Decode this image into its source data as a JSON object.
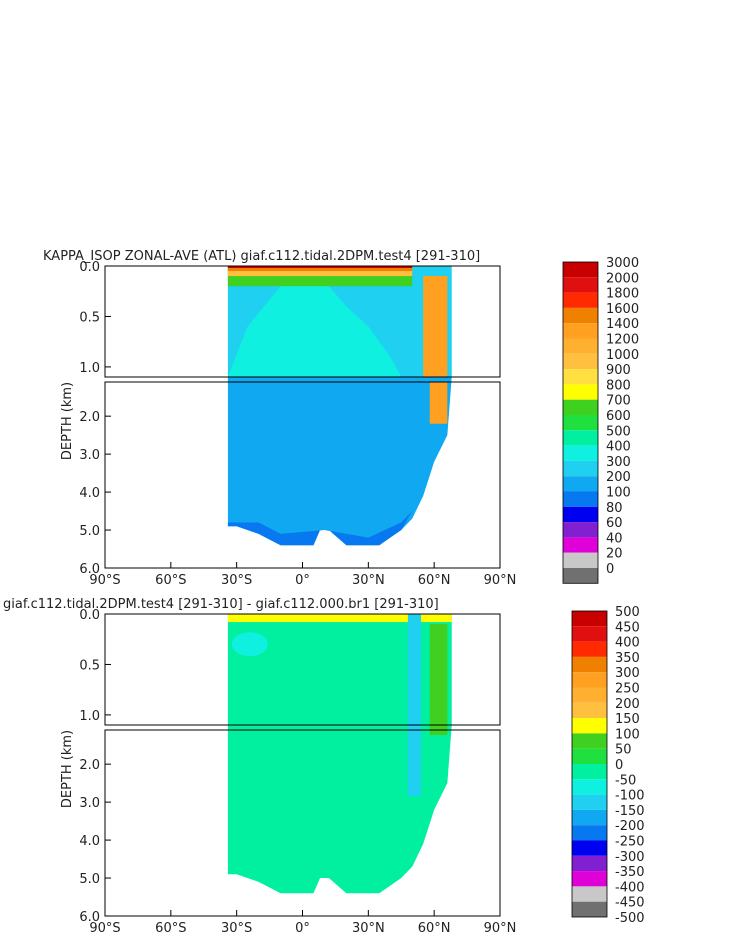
{
  "chart_data": [
    {
      "type": "heatmap",
      "title": "KAPPA_ISOP ZONAL-AVE (ATL) giaf.c112.tidal.2DPM.test4 [291-310]",
      "ylabel": "DEPTH (km)",
      "x_ticks": [
        "90°S",
        "60°S",
        "30°S",
        "0°",
        "30°N",
        "60°N",
        "90°N"
      ],
      "y_ticks_upper": [
        "0.0",
        "0.5",
        "1.0"
      ],
      "y_ticks_lower": [
        "2.0",
        "3.0",
        "4.0",
        "5.0",
        "6.0"
      ],
      "xlim": [
        -90,
        90
      ],
      "ylim_upper": [
        0,
        1.1
      ],
      "ylim_lower": [
        1.1,
        6.0
      ],
      "colorbar_labels": [
        "3000",
        "2000",
        "1800",
        "1600",
        "1400",
        "1200",
        "1000",
        "900",
        "800",
        "700",
        "600",
        "500",
        "400",
        "300",
        "200",
        "100",
        "80",
        "60",
        "40",
        "20",
        "0"
      ],
      "colorbar_colors": [
        "#c80000",
        "#e01010",
        "#ff2a00",
        "#f08000",
        "#ffa020",
        "#ffb030",
        "#ffc040",
        "#ffe040",
        "#ffff00",
        "#40d020",
        "#20e040",
        "#00f0a0",
        "#10f0e0",
        "#20d0f0",
        "#10a8f0",
        "#0878f0",
        "#0000f0",
        "#8020d0",
        "#e000d8",
        "#c8c8c8",
        "#707070"
      ],
      "description_values": {
        "dominant_interior": "200-300",
        "surface_max": "2000-3000",
        "deep_bottom": "100-200"
      }
    },
    {
      "type": "heatmap",
      "title": "giaf.c112.tidal.2DPM.test4 [291-310] - giaf.c112.000.br1 [291-310]",
      "ylabel": "DEPTH (km)",
      "x_ticks": [
        "90°S",
        "60°S",
        "30°S",
        "0°",
        "30°N",
        "60°N",
        "90°N"
      ],
      "y_ticks_upper": [
        "0.0",
        "0.5",
        "1.0"
      ],
      "y_ticks_lower": [
        "2.0",
        "3.0",
        "4.0",
        "5.0",
        "6.0"
      ],
      "xlim": [
        -90,
        90
      ],
      "ylim_upper": [
        0,
        1.1
      ],
      "ylim_lower": [
        1.1,
        6.0
      ],
      "colorbar_labels": [
        "500",
        "450",
        "400",
        "350",
        "300",
        "250",
        "200",
        "150",
        "100",
        "50",
        "0",
        "-50",
        "-100",
        "-150",
        "-200",
        "-250",
        "-300",
        "-350",
        "-400",
        "-450",
        "-500"
      ],
      "colorbar_colors": [
        "#c80000",
        "#e01010",
        "#ff2a00",
        "#f08000",
        "#ffa020",
        "#ffb030",
        "#ffc040",
        "#ffff00",
        "#40d020",
        "#20e040",
        "#00f0a0",
        "#10f0e0",
        "#20d0f0",
        "#10a8f0",
        "#0878f0",
        "#0000f0",
        "#8020d0",
        "#e000d8",
        "#c8c8c8",
        "#707070"
      ]
    }
  ]
}
